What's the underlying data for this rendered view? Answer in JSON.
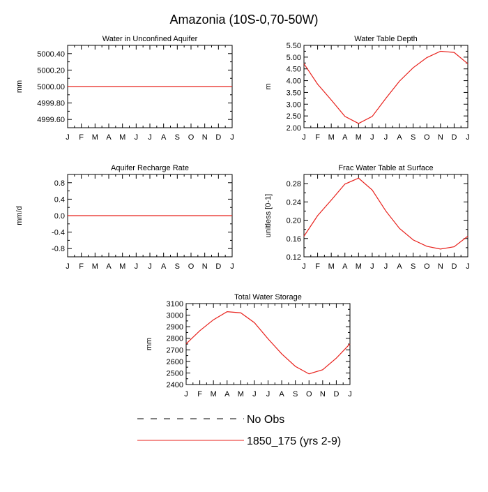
{
  "figure": {
    "title": "Amazonia (10S-0,70-50W)"
  },
  "colors": {
    "model_line": "#e8201b",
    "obs_line": "#000000",
    "axis": "#000000"
  },
  "legend": {
    "entries": [
      {
        "label": "No Obs",
        "style": "dashed",
        "color": "#000000"
      },
      {
        "label": "1850_175 (yrs 2-9)",
        "style": "solid",
        "color": "#e8201b"
      }
    ]
  },
  "chart_data": [
    {
      "type": "line",
      "title": "Water in Unconfined Aquifer",
      "ylabel": "mm",
      "categories": [
        "J",
        "F",
        "M",
        "A",
        "M",
        "J",
        "J",
        "A",
        "S",
        "O",
        "N",
        "D",
        "J"
      ],
      "yticks": [
        "4999.60",
        "4999.80",
        "5000.00",
        "5000.20",
        "5000.40"
      ],
      "ylim": [
        4999.5,
        5000.5
      ],
      "series": [
        {
          "name": "1850_175 (yrs 2-9)",
          "values": [
            5000,
            5000,
            5000,
            5000,
            5000,
            5000,
            5000,
            5000,
            5000,
            5000,
            5000,
            5000,
            5000
          ]
        }
      ]
    },
    {
      "type": "line",
      "title": "Water Table Depth",
      "ylabel": "m",
      "categories": [
        "J",
        "F",
        "M",
        "A",
        "M",
        "J",
        "J",
        "A",
        "S",
        "O",
        "N",
        "D",
        "J"
      ],
      "yticks": [
        "2.00",
        "2.50",
        "3.00",
        "3.50",
        "4.00",
        "4.50",
        "5.00",
        "5.50"
      ],
      "ylim": [
        2.0,
        5.5
      ],
      "series": [
        {
          "name": "1850_175 (yrs 2-9)",
          "values": [
            4.72,
            3.85,
            3.18,
            2.48,
            2.18,
            2.48,
            3.25,
            3.98,
            4.55,
            4.98,
            5.25,
            5.2,
            4.72
          ]
        }
      ]
    },
    {
      "type": "line",
      "title": "Aquifer Recharge Rate",
      "ylabel": "mm/d",
      "categories": [
        "J",
        "F",
        "M",
        "A",
        "M",
        "J",
        "J",
        "A",
        "S",
        "O",
        "N",
        "D",
        "J"
      ],
      "yticks": [
        "-0.8",
        "-0.4",
        "0.0",
        "0.4",
        "0.8"
      ],
      "ylim": [
        -1.0,
        1.0
      ],
      "series": [
        {
          "name": "1850_175 (yrs 2-9)",
          "values": [
            0,
            0,
            0,
            0,
            0,
            0,
            0,
            0,
            0,
            0,
            0,
            0,
            0
          ]
        }
      ]
    },
    {
      "type": "line",
      "title": "Frac Water Table at Surface",
      "ylabel": "unitless [0-1]",
      "categories": [
        "J",
        "F",
        "M",
        "A",
        "M",
        "J",
        "J",
        "A",
        "S",
        "O",
        "N",
        "D",
        "J"
      ],
      "yticks": [
        "0.12",
        "0.16",
        "0.20",
        "0.24",
        "0.28"
      ],
      "ylim": [
        0.12,
        0.3
      ],
      "series": [
        {
          "name": "1850_175 (yrs 2-9)",
          "values": [
            0.165,
            0.21,
            0.244,
            0.279,
            0.292,
            0.266,
            0.22,
            0.182,
            0.157,
            0.143,
            0.137,
            0.142,
            0.165
          ]
        }
      ]
    },
    {
      "type": "line",
      "title": "Total Water Storage",
      "ylabel": "mm",
      "categories": [
        "J",
        "F",
        "M",
        "A",
        "M",
        "J",
        "J",
        "A",
        "S",
        "O",
        "N",
        "D",
        "J"
      ],
      "yticks": [
        "2400",
        "2500",
        "2600",
        "2700",
        "2800",
        "2900",
        "3000",
        "3100"
      ],
      "ylim": [
        2400,
        3100
      ],
      "series": [
        {
          "name": "1850_175 (yrs 2-9)",
          "values": [
            2752,
            2865,
            2960,
            3030,
            3020,
            2935,
            2795,
            2665,
            2557,
            2492,
            2528,
            2628,
            2752
          ]
        }
      ]
    }
  ]
}
